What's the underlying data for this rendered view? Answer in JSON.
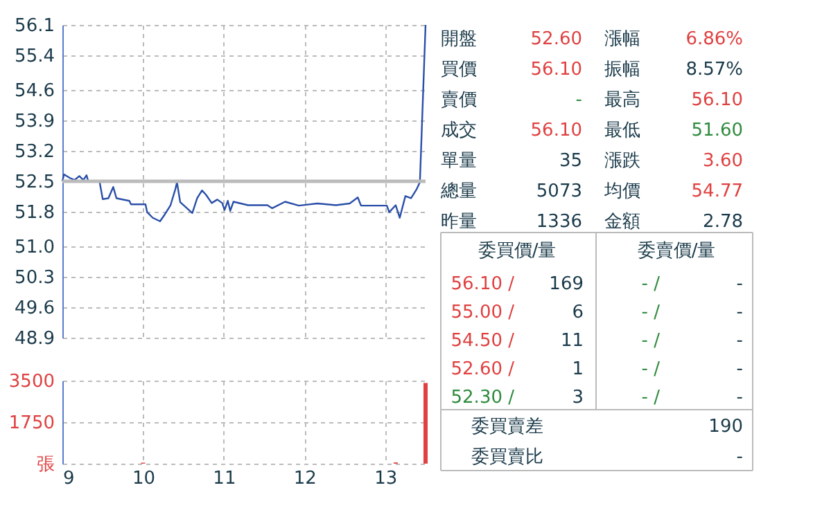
{
  "chart_data": [
    {
      "type": "line",
      "x": [
        9.0,
        9.02,
        9.09,
        9.15,
        9.21,
        9.26,
        9.3,
        9.32,
        9.46,
        9.5,
        9.57,
        9.63,
        9.67,
        9.83,
        9.85,
        10.03,
        10.05,
        10.12,
        10.21,
        10.27,
        10.34,
        10.4,
        10.42,
        10.46,
        10.61,
        10.67,
        10.73,
        10.78,
        10.85,
        10.92,
        10.98,
        11.01,
        11.05,
        11.08,
        11.12,
        11.3,
        11.54,
        11.6,
        11.76,
        11.93,
        12.16,
        12.39,
        12.56,
        12.66,
        12.7,
        13.02,
        13.05,
        13.13,
        13.18,
        13.25,
        13.32,
        13.39,
        13.43,
        13.5
      ],
      "series": [
        {
          "color": "#2a4fa8",
          "values": [
            52.5,
            52.66,
            52.58,
            52.53,
            52.62,
            52.53,
            52.64,
            52.5,
            52.5,
            52.09,
            52.11,
            52.37,
            52.11,
            52.05,
            51.97,
            51.97,
            51.79,
            51.66,
            51.58,
            51.74,
            51.95,
            52.32,
            52.48,
            52.02,
            51.77,
            52.11,
            52.29,
            52.19,
            52.0,
            52.08,
            52.0,
            51.84,
            52.05,
            51.82,
            52.03,
            51.95,
            51.95,
            51.88,
            52.03,
            51.94,
            51.99,
            51.95,
            51.99,
            52.13,
            51.94,
            51.94,
            51.79,
            51.95,
            51.66,
            52.16,
            52.11,
            52.32,
            52.48,
            56.1
          ]
        }
      ],
      "xlim": [
        9,
        13.5
      ],
      "xticks": [
        9,
        10,
        11,
        12,
        13
      ],
      "ylim": [
        48.9,
        56.1
      ],
      "yticks": [
        48.9,
        49.6,
        50.3,
        {
          "value": 51.0,
          "label": "51.0"
        },
        51.8,
        52.5,
        53.2,
        53.9,
        54.6,
        55.4,
        56.1
      ],
      "ref_lines": [
        {
          "axis": "y",
          "value": 52.5,
          "color": "#bbbbbb"
        }
      ],
      "grid": true,
      "tick_labels": "y",
      "marker": "none",
      "line_style": "solid"
    },
    {
      "type": "bar",
      "x": [
        10.0,
        13.13,
        13.5
      ],
      "series": [
        {
          "color": "#e04040",
          "values": [
            40,
            50,
            3400
          ]
        }
      ],
      "xlim": [
        9,
        13.5
      ],
      "xticks": [
        9,
        10,
        11,
        12,
        13
      ],
      "ylim": [
        0,
        3500
      ],
      "yticks": [
        {
          "value": 0,
          "label": "張"
        },
        1750,
        3500
      ],
      "grid": true
    },
    {
      "type": "other",
      "annotations": [
        "開盤",
        "52.60",
        "漲幅",
        "6.86%",
        "買價",
        "56.10",
        "振幅",
        "8.57%",
        "賣價",
        "-",
        "最高",
        "56.10",
        "成交",
        "56.10",
        "最低",
        "51.60",
        "單量",
        "35",
        "漲跌",
        "3.60",
        "總量",
        "5073",
        "均價",
        "54.77",
        "昨量",
        "1336",
        "金額",
        "2.78",
        "委買價/量",
        "委賣價/量",
        "56.10 /",
        "169",
        "- /",
        "-",
        "55.00 /",
        "6",
        "- /",
        "-",
        "54.50 /",
        "11",
        "- /",
        "-",
        "52.60 /",
        "1",
        "- /",
        "-",
        "52.30 /",
        "3",
        "- /",
        "-",
        "委買賣差",
        "190",
        "委買賣比",
        "-"
      ],
      "colors": [
        "#1a3a4a",
        "#e04040",
        "#1a3a4a",
        "#e04040",
        "#1a3a4a",
        "#e04040",
        "#1a3a4a",
        "#1a3a4a",
        "#1a3a4a",
        "#2e8b3e",
        "#1a3a4a",
        "#e04040",
        "#1a3a4a",
        "#e04040",
        "#1a3a4a",
        "#2e8b3e",
        "#1a3a4a",
        "#1a3a4a",
        "#1a3a4a",
        "#e04040",
        "#1a3a4a",
        "#1a3a4a",
        "#1a3a4a",
        "#e04040",
        "#1a3a4a",
        "#1a3a4a",
        "#1a3a4a",
        "#1a3a4a",
        "#1a3a4a",
        "#1a3a4a",
        "#e04040",
        "#1a3a4a",
        "#2e8b3e",
        "#1a3a4a",
        "#e04040",
        "#1a3a4a",
        "#2e8b3e",
        "#1a3a4a",
        "#e04040",
        "#1a3a4a",
        "#2e8b3e",
        "#1a3a4a",
        "#e04040",
        "#1a3a4a",
        "#2e8b3e",
        "#1a3a4a",
        "#2e8b3e",
        "#1a3a4a",
        "#2e8b3e",
        "#1a3a4a",
        "#1a3a4a",
        "#1a3a4a",
        "#1a3a4a",
        "#1a3a4a"
      ]
    }
  ]
}
